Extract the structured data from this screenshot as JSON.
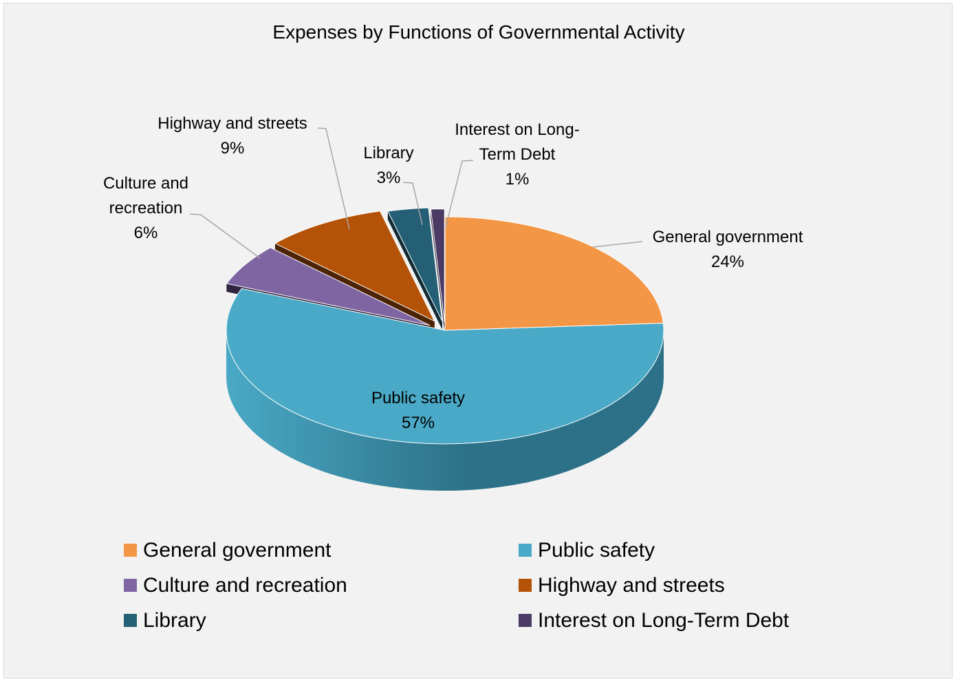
{
  "chart_data": {
    "type": "pie",
    "title": "Expenses by Functions of Governmental Activity",
    "slices": [
      {
        "name": "General government",
        "label_lines": [
          "General government"
        ],
        "value": 24,
        "value_label": "24%",
        "color": "#f39646",
        "side_color": "#6b3d1c"
      },
      {
        "name": "Public safety",
        "label_lines": [
          "Public safety"
        ],
        "value": 57,
        "value_label": "57%",
        "color": "#4aa9c6",
        "side_color": "#2c7187"
      },
      {
        "name": "Culture and recreation",
        "label_lines": [
          "Culture and",
          "recreation"
        ],
        "value": 6,
        "value_label": "6%",
        "color": "#8065a3",
        "side_color": "#2f2540"
      },
      {
        "name": "Highway and streets",
        "label_lines": [
          "Highway and streets"
        ],
        "value": 9,
        "value_label": "9%",
        "color": "#b45307",
        "side_color": "#4c2404"
      },
      {
        "name": "Library",
        "label_lines": [
          "Library"
        ],
        "value": 3,
        "value_label": "3%",
        "color": "#245f75",
        "side_color": "#0f2a35"
      },
      {
        "name": "Interest on Long-Term Debt",
        "label_lines": [
          "Interest on Long-",
          "Term Debt"
        ],
        "value": 1,
        "value_label": "1%",
        "color": "#4b3a63",
        "side_color": "#231b2f"
      }
    ],
    "legend": {
      "placement": "bottom",
      "entries": [
        "General government",
        "Public safety",
        "Culture and recreation",
        "Highway and streets",
        "Library",
        "Interest on Long-Term Debt"
      ]
    }
  }
}
